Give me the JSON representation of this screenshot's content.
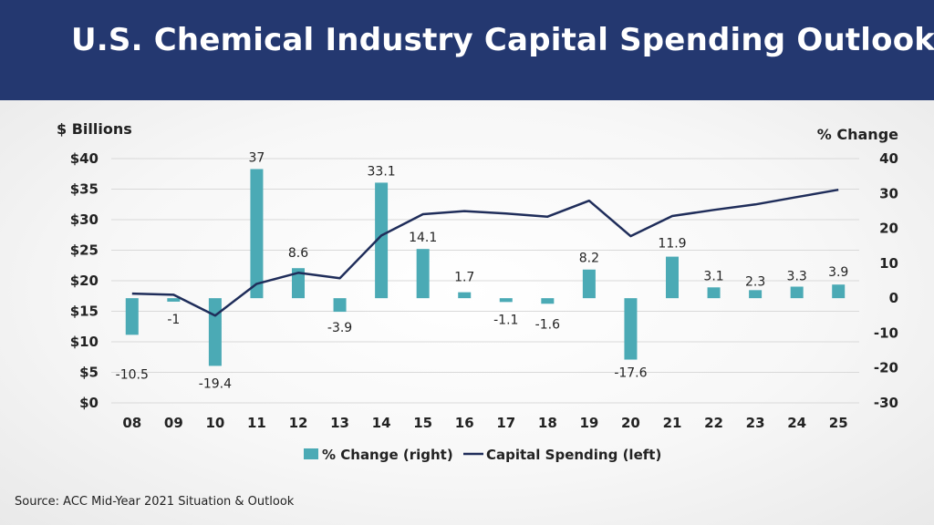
{
  "slide": {
    "title": "U.S. Chemical Industry Capital Spending Outlook",
    "source": "Source: ACC Mid-Year 2021 Situation & Outlook"
  },
  "colors": {
    "header_bg": "#243870",
    "bar": "#4baab5",
    "line": "#1f2d5a",
    "grid": "#d9d9d9"
  },
  "chart_data": {
    "type": "bar+line",
    "categories": [
      "08",
      "09",
      "10",
      "11",
      "12",
      "13",
      "14",
      "15",
      "16",
      "17",
      "18",
      "19",
      "20",
      "21",
      "22",
      "23",
      "24",
      "25"
    ],
    "series": [
      {
        "name": "% Change (right)",
        "type": "bar",
        "axis": "right",
        "values": [
          -10.5,
          -1,
          -19.4,
          37,
          8.6,
          -3.9,
          33.1,
          14.1,
          1.7,
          -1.1,
          -1.6,
          8.2,
          -17.6,
          11.9,
          3.1,
          2.3,
          3.3,
          3.9
        ],
        "labels": [
          "-10.5",
          "-1",
          "-19.4",
          "37",
          "8.6",
          "-3.9",
          "33.1",
          "14.1",
          "1.7",
          "-1.1",
          "-1.6",
          "8.2",
          "-17.6",
          "11.9",
          "3.1",
          "2.3",
          "3.3",
          "3.9"
        ]
      },
      {
        "name": "Capital Spending (left)",
        "type": "line",
        "axis": "left",
        "values": [
          17.9,
          17.7,
          14.3,
          19.5,
          21.3,
          20.4,
          27.4,
          30.9,
          31.4,
          31.0,
          30.5,
          33.1,
          27.3,
          30.6,
          31.6,
          32.5,
          33.7,
          34.9
        ]
      }
    ],
    "left_axis": {
      "label": "$ Billions",
      "range": [
        0,
        40
      ],
      "ticks": [
        40,
        35,
        30,
        25,
        20,
        15,
        10,
        5,
        0
      ],
      "tick_labels": [
        "$40",
        "$35",
        "$30",
        "$25",
        "$20",
        "$15",
        "$10",
        "$5",
        "$0"
      ]
    },
    "right_axis": {
      "label": "% Change",
      "range": [
        -30,
        40
      ],
      "ticks": [
        40,
        30,
        20,
        10,
        0,
        -10,
        -20,
        -30
      ],
      "tick_labels": [
        "40",
        "30",
        "20",
        "10",
        "0",
        "-10",
        "-20",
        "-30"
      ]
    },
    "grid": true,
    "legend_position": "bottom-center",
    "legend": [
      "% Change (right)",
      "Capital Spending (left)"
    ]
  }
}
